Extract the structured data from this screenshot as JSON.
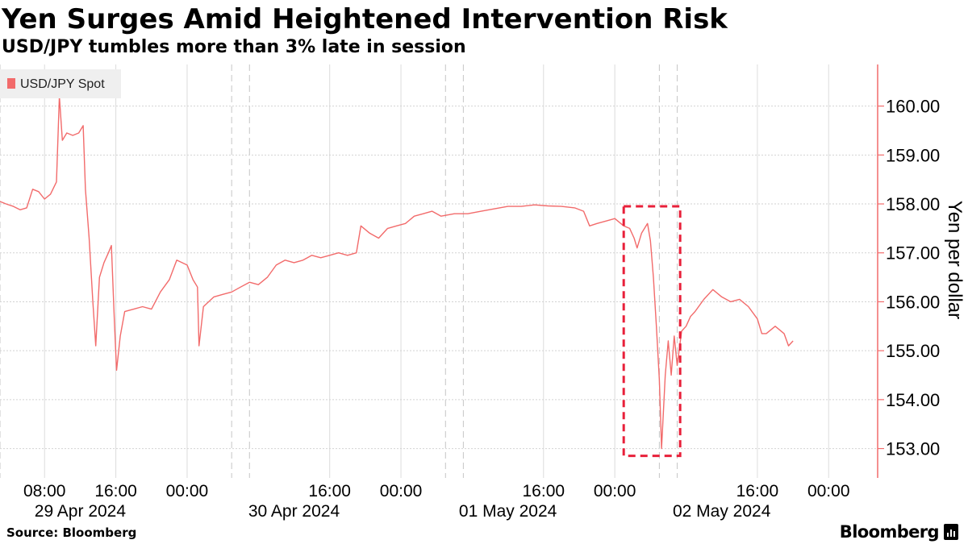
{
  "title": "Yen Surges Amid Heightened Intervention Risk",
  "subtitle": "USD/JPY tumbles more than 3% late in session",
  "source": "Source: Bloomberg",
  "brand": "Bloomberg",
  "chart_data": {
    "type": "line",
    "ylabel": "Yen per dollar",
    "ylim": [
      152.4,
      160.85
    ],
    "yticks": [
      153,
      154,
      155,
      156,
      157,
      158,
      159,
      160
    ],
    "ytick_labels": [
      "153.00",
      "154.00",
      "155.00",
      "156.00",
      "157.00",
      "158.00",
      "159.00",
      "160.00"
    ],
    "xlim": [
      "2024-04-29 03:00",
      "2024-05-03 05:30"
    ],
    "xtick_labels": [
      {
        "time": "2024-04-29 08:00",
        "label": "08:00"
      },
      {
        "time": "2024-04-29 16:00",
        "label": "16:00"
      },
      {
        "time": "2024-04-30 00:00",
        "label": "00:00"
      },
      {
        "time": "2024-04-30 16:00",
        "label": "16:00"
      },
      {
        "time": "2024-05-01 00:00",
        "label": "00:00"
      },
      {
        "time": "2024-05-01 16:00",
        "label": "16:00"
      },
      {
        "time": "2024-05-02 00:00",
        "label": "00:00"
      },
      {
        "time": "2024-05-02 16:00",
        "label": "16:00"
      },
      {
        "time": "2024-05-03 00:00",
        "label": "00:00"
      }
    ],
    "date_labels": [
      {
        "time": "2024-04-29 12:00",
        "label": "29 Apr 2024"
      },
      {
        "time": "2024-04-30 12:00",
        "label": "30 Apr 2024"
      },
      {
        "time": "2024-05-01 12:00",
        "label": "01 May 2024"
      },
      {
        "time": "2024-05-02 12:00",
        "label": "02 May 2024"
      }
    ],
    "session_break_lines": [
      "2024-04-29 03:00",
      "2024-04-30 05:00",
      "2024-04-30 07:00",
      "2024-05-01 05:00",
      "2024-05-01 07:00",
      "2024-05-02 05:00",
      "2024-05-02 07:00"
    ],
    "grid": true,
    "legend_position": "top-left",
    "series": [
      {
        "name": "USD/JPY Spot",
        "color": "#f26b6b",
        "points": [
          [
            "2024-04-29 03:00",
            158.05
          ],
          [
            "2024-04-29 03:40",
            158.0
          ],
          [
            "2024-04-29 04:30",
            157.95
          ],
          [
            "2024-04-29 05:15",
            157.88
          ],
          [
            "2024-04-29 06:00",
            157.92
          ],
          [
            "2024-04-29 06:40",
            158.3
          ],
          [
            "2024-04-29 07:20",
            158.25
          ],
          [
            "2024-04-29 08:00",
            158.1
          ],
          [
            "2024-04-29 08:40",
            158.2
          ],
          [
            "2024-04-29 09:20",
            158.45
          ],
          [
            "2024-04-29 09:40",
            160.2
          ],
          [
            "2024-04-29 10:00",
            159.3
          ],
          [
            "2024-04-29 10:30",
            159.45
          ],
          [
            "2024-04-29 11:10",
            159.4
          ],
          [
            "2024-04-29 11:50",
            159.45
          ],
          [
            "2024-04-29 12:20",
            159.6
          ],
          [
            "2024-04-29 12:35",
            158.3
          ],
          [
            "2024-04-29 13:00",
            157.3
          ],
          [
            "2024-04-29 13:25",
            156.0
          ],
          [
            "2024-04-29 13:45",
            155.1
          ],
          [
            "2024-04-29 14:10",
            156.5
          ],
          [
            "2024-04-29 14:40",
            156.8
          ],
          [
            "2024-04-29 15:10",
            157.0
          ],
          [
            "2024-04-29 15:30",
            157.15
          ],
          [
            "2024-04-29 15:50",
            155.6
          ],
          [
            "2024-04-29 16:05",
            154.6
          ],
          [
            "2024-04-29 16:30",
            155.3
          ],
          [
            "2024-04-29 17:00",
            155.8
          ],
          [
            "2024-04-29 18:00",
            155.85
          ],
          [
            "2024-04-29 19:00",
            155.9
          ],
          [
            "2024-04-29 20:00",
            155.85
          ],
          [
            "2024-04-29 21:00",
            156.2
          ],
          [
            "2024-04-29 22:00",
            156.45
          ],
          [
            "2024-04-29 22:50",
            156.85
          ],
          [
            "2024-04-30 00:00",
            156.75
          ],
          [
            "2024-04-30 00:40",
            156.45
          ],
          [
            "2024-04-30 01:10",
            156.3
          ],
          [
            "2024-04-30 01:20",
            155.1
          ],
          [
            "2024-04-30 01:50",
            155.9
          ],
          [
            "2024-04-30 03:00",
            156.1
          ],
          [
            "2024-04-30 04:00",
            156.15
          ],
          [
            "2024-04-30 05:00",
            156.2
          ],
          [
            "2024-04-30 06:00",
            156.3
          ],
          [
            "2024-04-30 07:00",
            156.4
          ],
          [
            "2024-04-30 08:00",
            156.35
          ],
          [
            "2024-04-30 09:00",
            156.5
          ],
          [
            "2024-04-30 10:00",
            156.75
          ],
          [
            "2024-04-30 11:00",
            156.85
          ],
          [
            "2024-04-30 12:00",
            156.8
          ],
          [
            "2024-04-30 13:00",
            156.85
          ],
          [
            "2024-04-30 14:00",
            156.95
          ],
          [
            "2024-04-30 15:00",
            156.9
          ],
          [
            "2024-04-30 16:00",
            156.95
          ],
          [
            "2024-04-30 17:00",
            157.0
          ],
          [
            "2024-04-30 18:00",
            156.95
          ],
          [
            "2024-04-30 19:00",
            157.0
          ],
          [
            "2024-04-30 19:30",
            157.55
          ],
          [
            "2024-04-30 20:30",
            157.4
          ],
          [
            "2024-04-30 21:30",
            157.3
          ],
          [
            "2024-04-30 22:30",
            157.5
          ],
          [
            "2024-04-30 23:30",
            157.55
          ],
          [
            "2024-05-01 00:30",
            157.6
          ],
          [
            "2024-05-01 01:30",
            157.75
          ],
          [
            "2024-05-01 02:30",
            157.8
          ],
          [
            "2024-05-01 03:30",
            157.85
          ],
          [
            "2024-05-01 04:30",
            157.75
          ],
          [
            "2024-05-01 06:00",
            157.8
          ],
          [
            "2024-05-01 07:30",
            157.8
          ],
          [
            "2024-05-01 09:00",
            157.85
          ],
          [
            "2024-05-01 10:30",
            157.9
          ],
          [
            "2024-05-01 12:00",
            157.95
          ],
          [
            "2024-05-01 13:30",
            157.95
          ],
          [
            "2024-05-01 15:00",
            157.98
          ],
          [
            "2024-05-01 16:30",
            157.96
          ],
          [
            "2024-05-01 18:00",
            157.95
          ],
          [
            "2024-05-01 19:30",
            157.92
          ],
          [
            "2024-05-01 20:30",
            157.85
          ],
          [
            "2024-05-01 21:10",
            157.55
          ],
          [
            "2024-05-01 22:00",
            157.6
          ],
          [
            "2024-05-01 23:00",
            157.65
          ],
          [
            "2024-05-02 00:00",
            157.7
          ],
          [
            "2024-05-02 01:00",
            157.55
          ],
          [
            "2024-05-02 01:40",
            157.5
          ],
          [
            "2024-05-02 02:10",
            157.3
          ],
          [
            "2024-05-02 02:30",
            157.1
          ],
          [
            "2024-05-02 03:00",
            157.4
          ],
          [
            "2024-05-02 03:40",
            157.6
          ],
          [
            "2024-05-02 04:00",
            157.25
          ],
          [
            "2024-05-02 04:20",
            156.5
          ],
          [
            "2024-05-02 04:40",
            155.5
          ],
          [
            "2024-05-02 05:00",
            154.4
          ],
          [
            "2024-05-02 05:15",
            153.0
          ],
          [
            "2024-05-02 05:40",
            154.5
          ],
          [
            "2024-05-02 06:00",
            155.2
          ],
          [
            "2024-05-02 06:20",
            154.5
          ],
          [
            "2024-05-02 06:40",
            155.3
          ],
          [
            "2024-05-02 07:00",
            154.7
          ],
          [
            "2024-05-02 07:30",
            155.4
          ],
          [
            "2024-05-02 08:00",
            155.5
          ],
          [
            "2024-05-02 08:30",
            155.7
          ],
          [
            "2024-05-02 09:00",
            155.8
          ],
          [
            "2024-05-02 10:00",
            156.05
          ],
          [
            "2024-05-02 11:00",
            156.25
          ],
          [
            "2024-05-02 12:00",
            156.1
          ],
          [
            "2024-05-02 13:00",
            156.0
          ],
          [
            "2024-05-02 14:00",
            156.05
          ],
          [
            "2024-05-02 15:00",
            155.9
          ],
          [
            "2024-05-02 16:00",
            155.65
          ],
          [
            "2024-05-02 16:30",
            155.35
          ],
          [
            "2024-05-02 17:00",
            155.35
          ],
          [
            "2024-05-02 18:00",
            155.5
          ],
          [
            "2024-05-02 19:00",
            155.35
          ],
          [
            "2024-05-02 19:30",
            155.1
          ],
          [
            "2024-05-02 20:00",
            155.2
          ]
        ]
      }
    ],
    "annotations": [
      {
        "type": "dashed-box",
        "x_start": "2024-05-02 01:00",
        "x_end": "2024-05-02 07:20",
        "y_min": 152.85,
        "y_max": 157.95,
        "color": "#e8203a"
      }
    ]
  }
}
